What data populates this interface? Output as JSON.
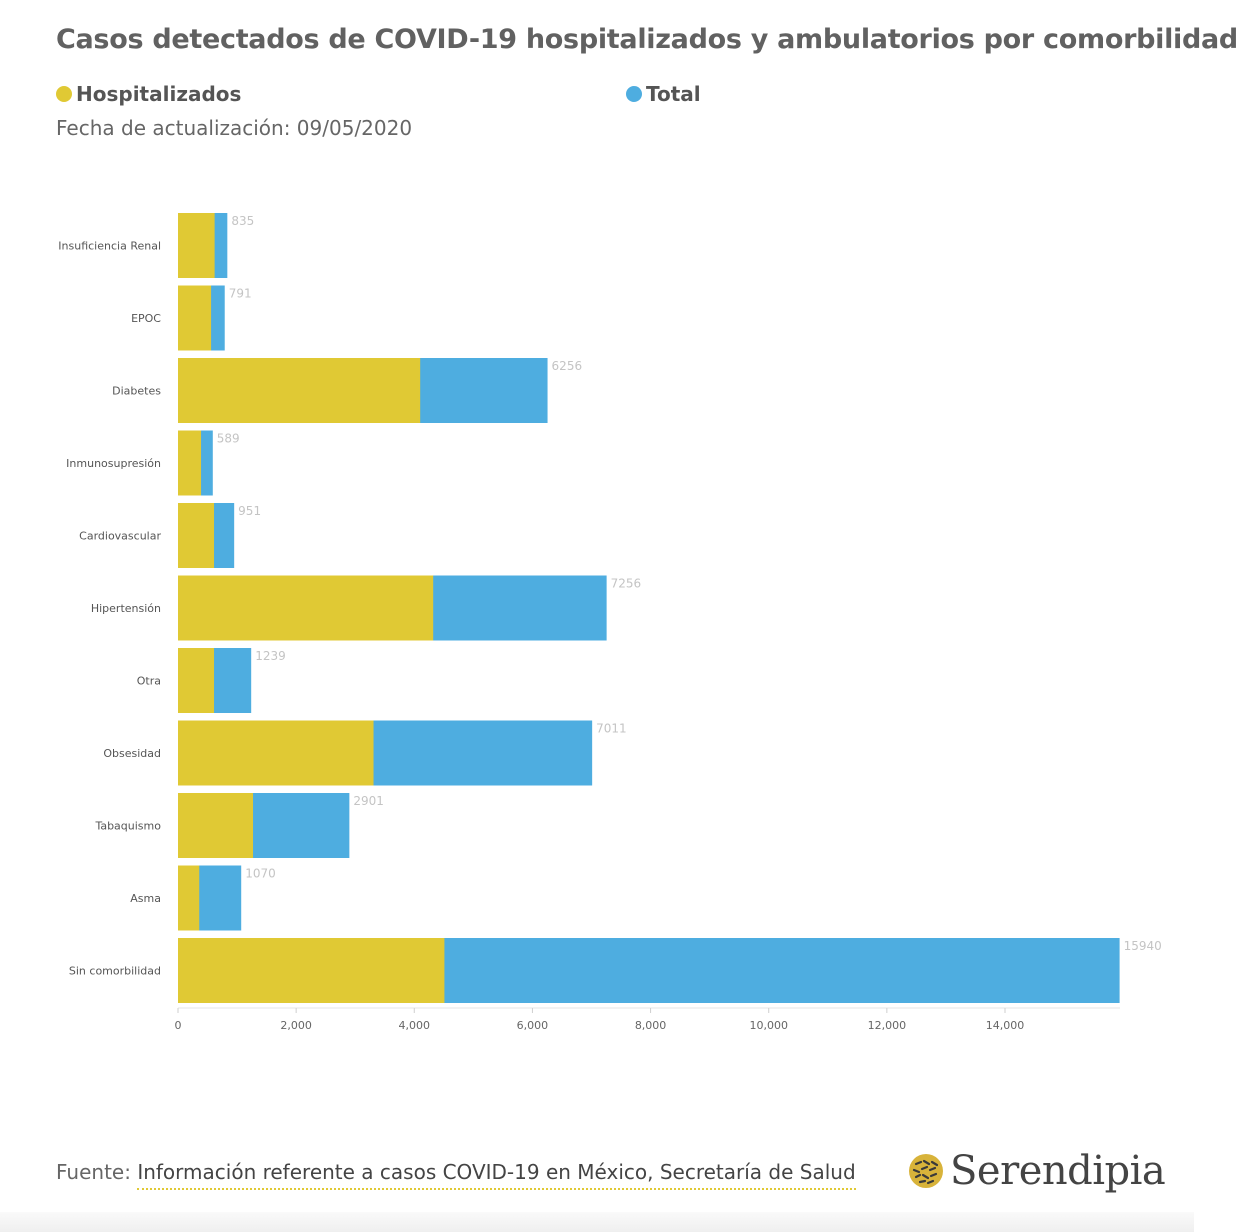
{
  "title": "Casos detectados de COVID-19 hospitalizados y ambulatorios por comorbilidad",
  "subtitle": "Fecha de actualización: 09/05/2020",
  "legend": {
    "hospitalizados": "Hospitalizados",
    "total": "Total"
  },
  "colors": {
    "hospitalizados": "#e0c934",
    "total": "#4eade0"
  },
  "footer": {
    "prefix": "Fuente: ",
    "source": "Información referente a casos COVID-19 en México, Secretaría de Salud",
    "logo_text": "Serendipia",
    "logo_icon": "serendipia-logo-icon"
  },
  "chart_data": {
    "type": "bar",
    "orientation": "horizontal",
    "stacked": true,
    "categories": [
      "Insuficiencia Renal",
      "EPOC",
      "Diabetes",
      "Inmunosupresión",
      "Cardiovascular",
      "Hipertensión",
      "Otra",
      "Obsesidad",
      "Tabaquismo",
      "Asma",
      "Sin comorbilidad"
    ],
    "series": [
      {
        "name": "Hospitalizados",
        "values": [
          620,
          560,
          4100,
          390,
          610,
          4320,
          610,
          3310,
          1270,
          360,
          4510
        ]
      },
      {
        "name": "Total",
        "values": [
          835,
          791,
          6256,
          589,
          951,
          7256,
          1239,
          7011,
          2901,
          1070,
          15940
        ]
      }
    ],
    "total_labels": [
      "835",
      "791",
      "6256",
      "589",
      "951",
      "7256",
      "1239",
      "7011",
      "2901",
      "1070",
      "15940"
    ],
    "xticks": [
      0,
      2000,
      4000,
      6000,
      8000,
      10000,
      12000,
      14000
    ],
    "xtick_labels": [
      "0",
      "2,000",
      "4,000",
      "6,000",
      "8,000",
      "10,000",
      "12,000",
      "14,000"
    ],
    "xlim": [
      0,
      16000
    ],
    "xlabel": "",
    "ylabel": "",
    "grid": false,
    "legend_position": "top"
  }
}
